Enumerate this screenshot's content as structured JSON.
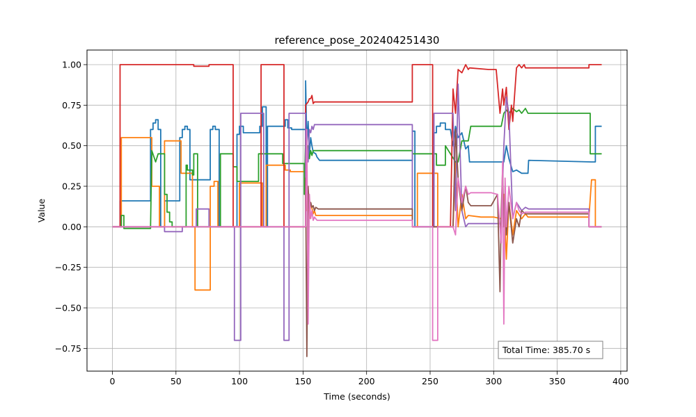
{
  "chart_data": {
    "type": "line",
    "title": "reference_pose_202404251430",
    "xlabel": "Time (seconds)",
    "ylabel": "Value",
    "xlim": [
      -20,
      405
    ],
    "ylim": [
      -0.89,
      1.09
    ],
    "x_ticks": [
      0,
      50,
      100,
      150,
      200,
      250,
      300,
      350,
      400
    ],
    "x_tick_labels": [
      "0",
      "50",
      "100",
      "150",
      "200",
      "250",
      "300",
      "350",
      "400"
    ],
    "y_ticks": [
      -0.75,
      -0.5,
      -0.25,
      0.0,
      0.25,
      0.5,
      0.75,
      1.0
    ],
    "y_tick_labels": [
      "−0.75",
      "−0.50",
      "−0.25",
      "0.00",
      "0.25",
      "0.50",
      "0.75",
      "1.00"
    ],
    "grid": true,
    "annotation": {
      "text": "Total Time: 385.70 s",
      "placement": "bottom-right"
    },
    "series": [
      {
        "color": "#1f77b4",
        "x": [
          0,
          6,
          6,
          30,
          30,
          32,
          32,
          34,
          34,
          36,
          36,
          38,
          38,
          41,
          41,
          53,
          53,
          55,
          55,
          57,
          57,
          59,
          59,
          61,
          61,
          65,
          65,
          77,
          77,
          79,
          79,
          81,
          81,
          84,
          84,
          98,
          98,
          100,
          100,
          103,
          103,
          116,
          116,
          118,
          118,
          121,
          121,
          122,
          122,
          136,
          136,
          138,
          138,
          141,
          141,
          152,
          152,
          153,
          154,
          155,
          156,
          157,
          158,
          160,
          161,
          163,
          166,
          236,
          236,
          238,
          238,
          253,
          253,
          255,
          255,
          258,
          258,
          262,
          262,
          266,
          268,
          270,
          272,
          275,
          278,
          280,
          281,
          290,
          298,
          308,
          310,
          312,
          315,
          318,
          322,
          325,
          326,
          327,
          327.5,
          377,
          377,
          380,
          380,
          385
        ],
        "y": [
          0.0,
          0.0,
          0.16,
          0.16,
          0.6,
          0.6,
          0.64,
          0.64,
          0.66,
          0.66,
          0.6,
          0.6,
          0.0,
          0.0,
          0.16,
          0.16,
          0.55,
          0.55,
          0.6,
          0.6,
          0.62,
          0.62,
          0.6,
          0.6,
          0.29,
          0.29,
          0.29,
          0.29,
          0.6,
          0.6,
          0.62,
          0.62,
          0.6,
          0.6,
          0.0,
          0.0,
          0.57,
          0.57,
          0.62,
          0.62,
          0.58,
          0.58,
          0.62,
          0.62,
          0.74,
          0.74,
          0.0,
          0.0,
          0.62,
          0.62,
          0.66,
          0.66,
          0.61,
          0.61,
          0.6,
          0.6,
          0.9,
          0.5,
          0.65,
          0.45,
          0.55,
          0.5,
          0.46,
          0.45,
          0.43,
          0.41,
          0.41,
          0.41,
          0.59,
          0.59,
          0.0,
          0.0,
          0.58,
          0.58,
          0.62,
          0.62,
          0.64,
          0.64,
          0.6,
          0.6,
          0.5,
          0.62,
          0.55,
          0.58,
          0.48,
          0.5,
          0.4,
          0.4,
          0.4,
          0.4,
          0.5,
          0.42,
          0.34,
          0.35,
          0.33,
          0.33,
          0.33,
          0.33,
          0.41,
          0.4,
          0.4,
          0.4,
          0.62,
          0.62
        ]
      },
      {
        "color": "#ff7f0e",
        "x": [
          0,
          7,
          7,
          31,
          31,
          37,
          37,
          41,
          41,
          52,
          52,
          54,
          54,
          59,
          59,
          63,
          63,
          65,
          65,
          67,
          67,
          77,
          77,
          80,
          80,
          83,
          83,
          84,
          84,
          100,
          100,
          116,
          116,
          118,
          118,
          121,
          121,
          122,
          122,
          136,
          136,
          140,
          140,
          152,
          152,
          153,
          154,
          155,
          156,
          158,
          159,
          160,
          162,
          165,
          236,
          236,
          240,
          240,
          252,
          252,
          256,
          256,
          268,
          270,
          272,
          275,
          278,
          280,
          290,
          300,
          306,
          308,
          310,
          312,
          315,
          318,
          322,
          325,
          326,
          327,
          327.5,
          375,
          375,
          377,
          377,
          380,
          380,
          385
        ],
        "y": [
          0.0,
          0.0,
          0.55,
          0.55,
          0.25,
          0.25,
          0.0,
          0.0,
          0.53,
          0.53,
          0.53,
          0.53,
          0.33,
          0.33,
          0.33,
          0.33,
          0.0,
          0.0,
          -0.39,
          -0.39,
          -0.39,
          -0.39,
          0.25,
          0.25,
          0.28,
          0.28,
          0.0,
          0.0,
          0.0,
          0.0,
          0.27,
          0.27,
          0.27,
          0.27,
          0.0,
          0.0,
          0.38,
          0.38,
          0.38,
          0.38,
          0.35,
          0.35,
          0.34,
          0.34,
          0.3,
          0.1,
          0.2,
          0.05,
          0.15,
          0.08,
          0.1,
          0.07,
          0.07,
          0.07,
          0.07,
          0.0,
          0.0,
          0.33,
          0.33,
          0.33,
          0.33,
          0.0,
          0.0,
          0.4,
          0.0,
          0.2,
          0.05,
          0.07,
          0.06,
          0.06,
          0.05,
          0.2,
          -0.2,
          0.15,
          -0.05,
          0.1,
          0.05,
          0.08,
          0.07,
          0.06,
          0.06,
          0.06,
          0.06,
          0.29,
          0.29,
          0.29,
          0.0,
          0.0
        ]
      },
      {
        "color": "#2ca02c",
        "x": [
          0,
          7,
          7,
          9,
          9,
          30,
          30,
          31,
          31,
          34,
          34,
          36,
          36,
          41,
          41,
          43,
          43,
          45,
          45,
          47,
          47,
          54,
          54,
          58,
          58,
          59,
          59,
          63,
          63,
          64,
          64,
          67,
          67,
          85,
          85,
          95,
          95,
          98,
          98,
          101,
          101,
          115,
          115,
          119,
          119,
          134,
          134,
          136,
          136,
          144,
          144,
          151,
          151,
          152,
          153,
          154,
          155,
          156,
          157,
          158,
          160,
          236,
          236,
          252,
          252,
          255,
          255,
          262,
          262,
          270,
          272,
          275,
          280,
          282,
          298,
          306,
          308,
          310,
          312,
          315,
          318,
          320,
          322,
          325,
          327,
          376,
          376,
          380,
          380,
          385
        ],
        "y": [
          0.0,
          0.0,
          0.07,
          0.07,
          -0.01,
          -0.01,
          0.0,
          0.47,
          0.47,
          0.4,
          0.4,
          0.45,
          0.45,
          0.45,
          0.2,
          0.2,
          0.09,
          0.09,
          0.03,
          0.03,
          0.0,
          0.0,
          0.0,
          0.0,
          0.38,
          0.38,
          0.35,
          0.35,
          0.32,
          0.32,
          0.45,
          0.45,
          0.0,
          0.0,
          0.45,
          0.45,
          0.37,
          0.37,
          0.28,
          0.28,
          0.28,
          0.28,
          0.45,
          0.45,
          0.45,
          0.45,
          0.39,
          0.39,
          0.39,
          0.39,
          0.39,
          0.39,
          0.2,
          0.55,
          0.4,
          0.5,
          0.42,
          0.47,
          0.44,
          0.47,
          0.47,
          0.47,
          0.45,
          0.45,
          0.45,
          0.45,
          0.38,
          0.38,
          0.5,
          0.4,
          0.4,
          0.53,
          0.53,
          0.62,
          0.62,
          0.62,
          0.7,
          0.72,
          0.7,
          0.73,
          0.71,
          0.72,
          0.7,
          0.73,
          0.7,
          0.7,
          0.45,
          0.45,
          0.45,
          0.45
        ]
      },
      {
        "color": "#d62728",
        "x": [
          0,
          6,
          6,
          64,
          64,
          76,
          76,
          95,
          95,
          117,
          117,
          135,
          135,
          152,
          152,
          154,
          155,
          156,
          157,
          158,
          159,
          160,
          162,
          236,
          236,
          252,
          252,
          266,
          268,
          270,
          272,
          275,
          278,
          280,
          281,
          296,
          298,
          302,
          305,
          307,
          308,
          310,
          312,
          314,
          315,
          318,
          320,
          322,
          324,
          325,
          328,
          345,
          375,
          375,
          385
        ],
        "y": [
          0.0,
          0.0,
          1.0,
          1.0,
          0.99,
          0.99,
          1.0,
          1.0,
          0.0,
          0.0,
          1.0,
          1.0,
          0.0,
          0.0,
          0.75,
          0.77,
          0.79,
          0.79,
          0.81,
          0.76,
          0.77,
          0.77,
          0.77,
          0.77,
          1.0,
          1.0,
          0.0,
          0.0,
          0.85,
          0.7,
          0.97,
          0.95,
          1.0,
          0.97,
          0.98,
          0.97,
          0.97,
          0.97,
          0.7,
          0.85,
          0.75,
          0.86,
          0.6,
          0.75,
          0.65,
          0.98,
          1.0,
          0.98,
          1.0,
          0.98,
          0.98,
          0.98,
          0.98,
          1.0,
          1.0
        ]
      },
      {
        "color": "#9467bd",
        "x": [
          0,
          37,
          37,
          41,
          41,
          53,
          53,
          55,
          55,
          66,
          66,
          76,
          76,
          96,
          96,
          99,
          99,
          101,
          101,
          119,
          119,
          135,
          135,
          139,
          139,
          142,
          142,
          152,
          152,
          153,
          154,
          155,
          156,
          157,
          158,
          159,
          162,
          236,
          236,
          253,
          253,
          256,
          256,
          268,
          270,
          272,
          275,
          278,
          280,
          290,
          303,
          306,
          308,
          310,
          312,
          315,
          318,
          322,
          325,
          327.5,
          375,
          375,
          385
        ],
        "y": [
          0.0,
          0.0,
          0.0,
          0.0,
          -0.03,
          -0.03,
          -0.03,
          -0.03,
          0.0,
          0.0,
          0.11,
          0.11,
          0.0,
          0.0,
          -0.7,
          -0.7,
          -0.7,
          -0.7,
          0.7,
          0.7,
          0.0,
          0.0,
          -0.7,
          -0.7,
          0.7,
          0.7,
          0.7,
          0.7,
          0.0,
          0.5,
          0.4,
          0.6,
          0.58,
          0.62,
          0.6,
          0.63,
          0.63,
          0.63,
          0.0,
          0.0,
          0.7,
          0.7,
          0.7,
          0.7,
          0.1,
          0.88,
          0.1,
          0.0,
          0.02,
          0.02,
          0.02,
          0.02,
          0.5,
          0.8,
          0.7,
          0.05,
          0.15,
          0.1,
          0.12,
          0.11,
          0.11,
          0.0,
          0.0
        ]
      },
      {
        "color": "#8c564b",
        "x": [
          0,
          152,
          152,
          153,
          154,
          155,
          156,
          157,
          158,
          159,
          160,
          162,
          165,
          236,
          236,
          268,
          270,
          272,
          275,
          278,
          280,
          282,
          298,
          303,
          305,
          306,
          307,
          308,
          309,
          310,
          312,
          315,
          318,
          320,
          322,
          325,
          327.5,
          375,
          375,
          385
        ],
        "y": [
          0.0,
          0.0,
          0.3,
          -0.8,
          0.25,
          0.1,
          0.15,
          0.12,
          0.13,
          0.1,
          0.12,
          0.11,
          0.11,
          0.11,
          0.0,
          0.0,
          0.6,
          0.3,
          0.1,
          0.25,
          0.15,
          0.13,
          0.13,
          0.2,
          -0.4,
          0.1,
          0.35,
          0.0,
          0.25,
          -0.05,
          0.15,
          -0.1,
          0.05,
          0.0,
          0.1,
          0.08,
          0.08,
          0.08,
          0.0,
          0.0
        ]
      },
      {
        "color": "#e377c2",
        "x": [
          0,
          6,
          6,
          152,
          152,
          153,
          154,
          155,
          156,
          157,
          158,
          159,
          161,
          165,
          236,
          236,
          252,
          252,
          256,
          256,
          268,
          270,
          272,
          275,
          278,
          280,
          282,
          298,
          303,
          306,
          307,
          308,
          309,
          310,
          312,
          315,
          318,
          320,
          322,
          325,
          327.5,
          375,
          375,
          385
        ],
        "y": [
          0.0,
          0.0,
          0.0,
          0.0,
          0.0,
          0.6,
          -0.6,
          0.2,
          0.05,
          0.1,
          0.04,
          0.06,
          0.04,
          0.04,
          0.04,
          0.0,
          0.0,
          -0.7,
          -0.7,
          0.0,
          0.0,
          -0.05,
          0.3,
          0.15,
          0.25,
          0.2,
          0.21,
          0.21,
          0.2,
          -0.1,
          0.4,
          -0.6,
          0.3,
          0.0,
          0.25,
          0.05,
          0.15,
          0.1,
          0.08,
          0.09,
          0.09,
          0.09,
          0.0,
          0.0
        ]
      }
    ]
  }
}
